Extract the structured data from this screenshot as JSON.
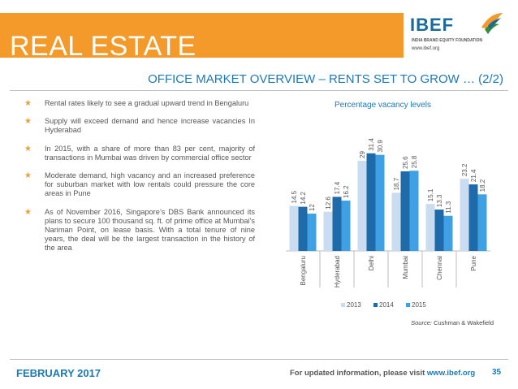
{
  "header": {
    "title": "REAL ESTATE",
    "logo_text": "IBEF",
    "logo_subtitle": "INDIA BRAND EQUITY FOUNDATION",
    "logo_url": "www.ibef.org"
  },
  "subtitle": "OFFICE MARKET OVERVIEW – RENTS SET TO GROW … (2/2)",
  "bullets": [
    "Rental rates likely to see a gradual upward trend in Bengaluru",
    "Supply will exceed demand and hence increase vacancies In Hyderabad",
    "In 2015, with a share of more than 83 per cent, majority of transactions in Mumbai was driven by commercial office sector",
    "Moderate demand, high vacancy and an increased preference for suburban market with low rentals could pressure the core areas in Pune",
    "As of November 2016, Singapore’s DBS Bank announced its plans to secure 100 thousand sq. ft. of prime office at Mumbai’s Nariman Point, on lease basis. With a total tenure of nine years, the deal will be the largest transaction in the history of the area"
  ],
  "chart_data": {
    "type": "bar",
    "title": "Percentage vacancy levels",
    "categories": [
      "Bengaluru",
      "Hyderabad",
      "Delhi",
      "Mumbai",
      "Chennai",
      "Pune"
    ],
    "series": [
      {
        "name": "2013",
        "values": [
          14.5,
          12.6,
          29,
          18.7,
          15.1,
          23.2
        ],
        "color": "#c9dcf0"
      },
      {
        "name": "2014",
        "values": [
          14.2,
          17.4,
          31.4,
          25.6,
          13.3,
          21.4
        ],
        "color": "#1f6aa8"
      },
      {
        "name": "2015",
        "values": [
          12,
          16.2,
          30.9,
          25.8,
          11.3,
          18.2
        ],
        "color": "#3fa0e4"
      }
    ],
    "ylim": [
      0,
      35
    ],
    "grid": false,
    "legend": "bottom"
  },
  "source": {
    "label": "Source:",
    "text": "Cushman & Wakefield"
  },
  "footer": {
    "date": "FEBRUARY 2017",
    "info": "For updated information, please visit",
    "link": "www.ibef.org",
    "page": "35"
  },
  "colors": {
    "accent": "#f39a2b",
    "brand_blue": "#1a7ab8",
    "star": "#e6a13a"
  }
}
